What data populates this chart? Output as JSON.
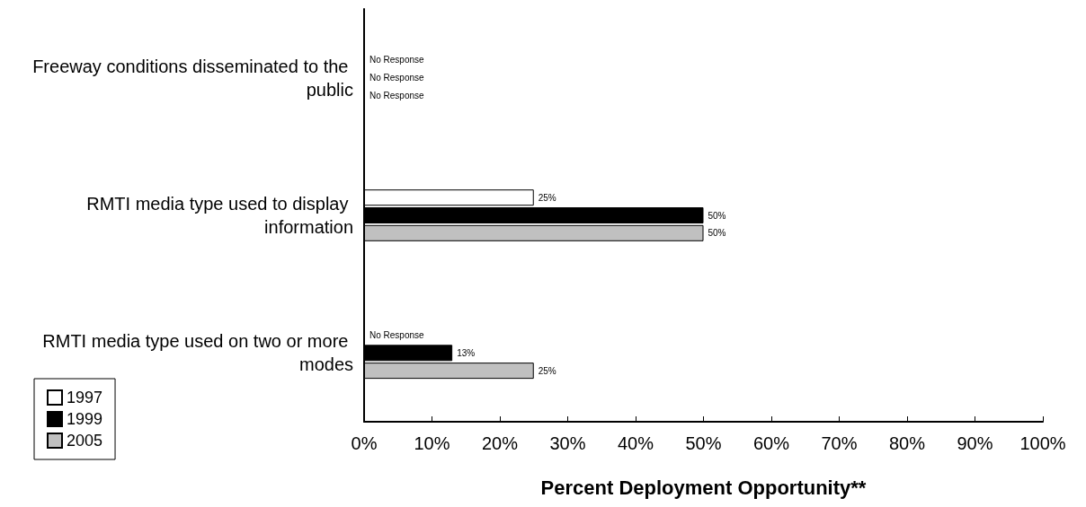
{
  "chart_data": {
    "type": "bar",
    "orientation": "horizontal",
    "xlabel": "Percent Deployment Opportunity**",
    "categories": [
      "Freeway conditions disseminated to the public",
      "RMTI media type used to display information",
      "RMTI media type used on two or more modes"
    ],
    "series": [
      {
        "name": "1997",
        "color": "#ffffff",
        "values": [
          null,
          25,
          null
        ],
        "value_labels": [
          "No Response",
          "25%",
          "No Response"
        ]
      },
      {
        "name": "1999",
        "color": "#000000",
        "values": [
          null,
          50,
          13
        ],
        "value_labels": [
          "No Response",
          "50%",
          "13%"
        ]
      },
      {
        "name": "2005",
        "color": "#c0c0c0",
        "values": [
          null,
          50,
          25
        ],
        "value_labels": [
          "No Response",
          "50%",
          "25%"
        ]
      }
    ],
    "xlim": [
      0,
      100
    ],
    "xticks": [
      {
        "value": 0,
        "label": "0%"
      },
      {
        "value": 10,
        "label": "10%"
      },
      {
        "value": 20,
        "label": "20%"
      },
      {
        "value": 30,
        "label": "30%"
      },
      {
        "value": 40,
        "label": "40%"
      },
      {
        "value": 50,
        "label": "50%"
      },
      {
        "value": 60,
        "label": "60%"
      },
      {
        "value": 70,
        "label": "70%"
      },
      {
        "value": 80,
        "label": "80%"
      },
      {
        "value": 90,
        "label": "90%"
      },
      {
        "value": 100,
        "label": "100%"
      }
    ],
    "grid": false,
    "legend": "bottom left"
  }
}
